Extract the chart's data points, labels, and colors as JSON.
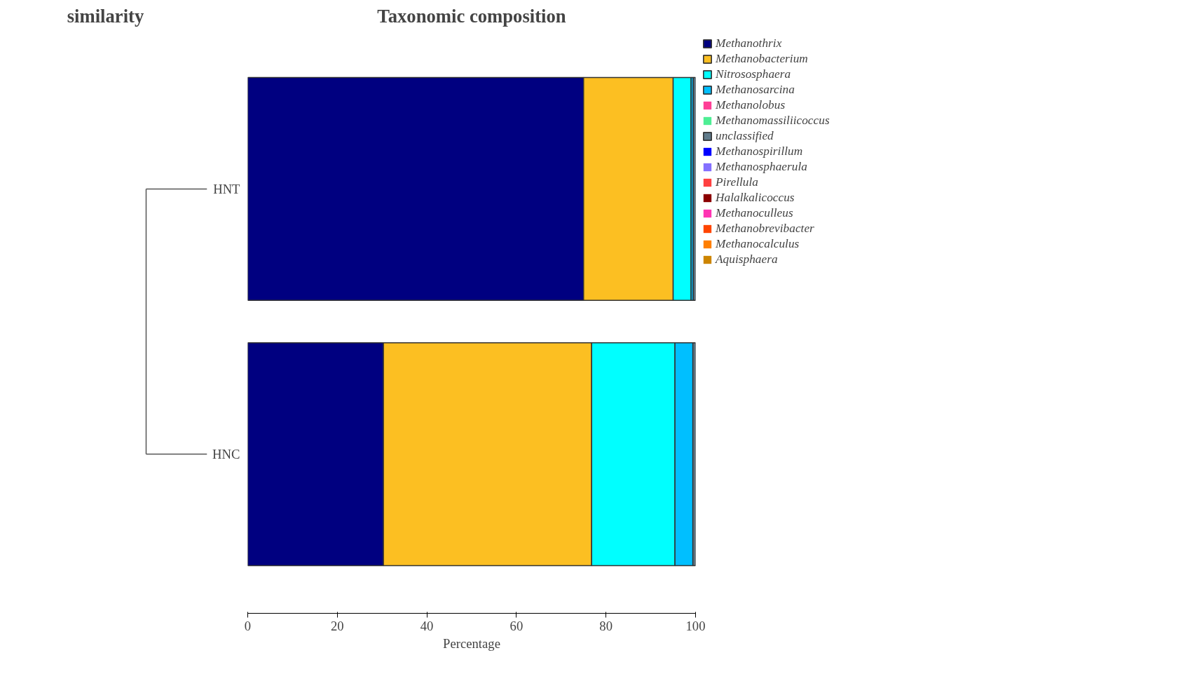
{
  "chart_data": {
    "type": "bar",
    "orientation": "horizontal",
    "stacked": true,
    "title": "Taxonomic composition",
    "xlabel": "Percentage",
    "annotations": [
      "similarity"
    ],
    "categories": [
      "HNT",
      "HNC"
    ],
    "series": [
      {
        "name": "Methanothrix",
        "color": "#000080",
        "values": [
          75,
          30.3
        ]
      },
      {
        "name": "Methanobacterium",
        "color": "#fcbf22",
        "values": [
          20,
          46.5
        ]
      },
      {
        "name": "Nitrososphaera",
        "color": "#00ffff",
        "values": [
          4,
          18.6
        ]
      },
      {
        "name": "Methanosarcina",
        "color": "#00bfff",
        "values": [
          0.5,
          4
        ]
      },
      {
        "name": "Methanolobus",
        "color": "#ff3e96",
        "values": [
          0,
          0
        ]
      },
      {
        "name": "Methanomassiliicoccus",
        "color": "#4eee94",
        "values": [
          0,
          0
        ]
      },
      {
        "name": "unclassified",
        "color": "#607b8b",
        "values": [
          0.5,
          0.6
        ]
      },
      {
        "name": "Methanospirillum",
        "color": "#0000ff",
        "values": [
          0,
          0
        ]
      },
      {
        "name": "Methanosphaerula",
        "color": "#8470ff",
        "values": [
          0,
          0
        ]
      },
      {
        "name": "Pirellula",
        "color": "#ff4040",
        "values": [
          0,
          0
        ]
      },
      {
        "name": "Halalkalicoccus",
        "color": "#8b0000",
        "values": [
          0,
          0
        ]
      },
      {
        "name": "Methanoculleus",
        "color": "#ff34b3",
        "values": [
          0,
          0
        ]
      },
      {
        "name": "Methanobrevibacter",
        "color": "#ff4500",
        "values": [
          0,
          0
        ]
      },
      {
        "name": "Methanocalculus",
        "color": "#ff7f00",
        "values": [
          0,
          0
        ]
      },
      {
        "name": "Aquisphaera",
        "color": "#cd8500",
        "values": [
          0,
          0
        ]
      }
    ],
    "xlim": [
      0,
      100
    ],
    "xticks": [
      0,
      20,
      40,
      60,
      80,
      100
    ],
    "grid": false,
    "legend": "right"
  }
}
